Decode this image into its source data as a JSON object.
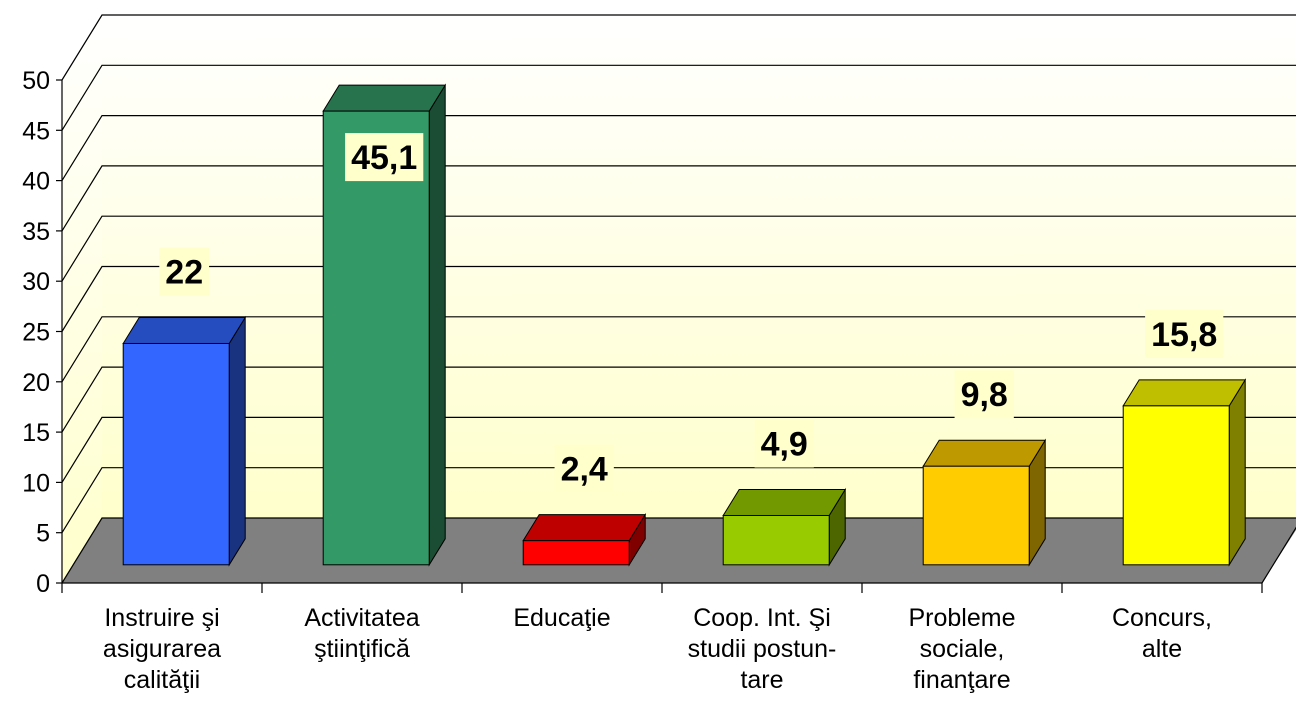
{
  "chart_data": {
    "type": "bar3d",
    "categories": [
      "Instruire şi\nasigurarea\ncalităţii",
      "Activitatea\nştiinţifică",
      "Educaţie",
      "Coop. Int. Şi\nstudii postun-\ntare",
      "Probleme\nsociale,\nfinanţare",
      "Concurs,\nalte"
    ],
    "values": [
      22,
      45.1,
      2.4,
      4.9,
      9.8,
      15.8
    ],
    "value_labels": [
      "22",
      "45,1",
      "2,4",
      "4,9",
      "9,8",
      "15,8"
    ],
    "colors": [
      "#3366ff",
      "#339966",
      "#ff0000",
      "#99cc00",
      "#ffcc00",
      "#ffff00"
    ],
    "ylim": [
      0,
      50
    ],
    "yticks": [
      0,
      5,
      10,
      15,
      20,
      25,
      30,
      35,
      40,
      45,
      50
    ],
    "grid": true
  }
}
